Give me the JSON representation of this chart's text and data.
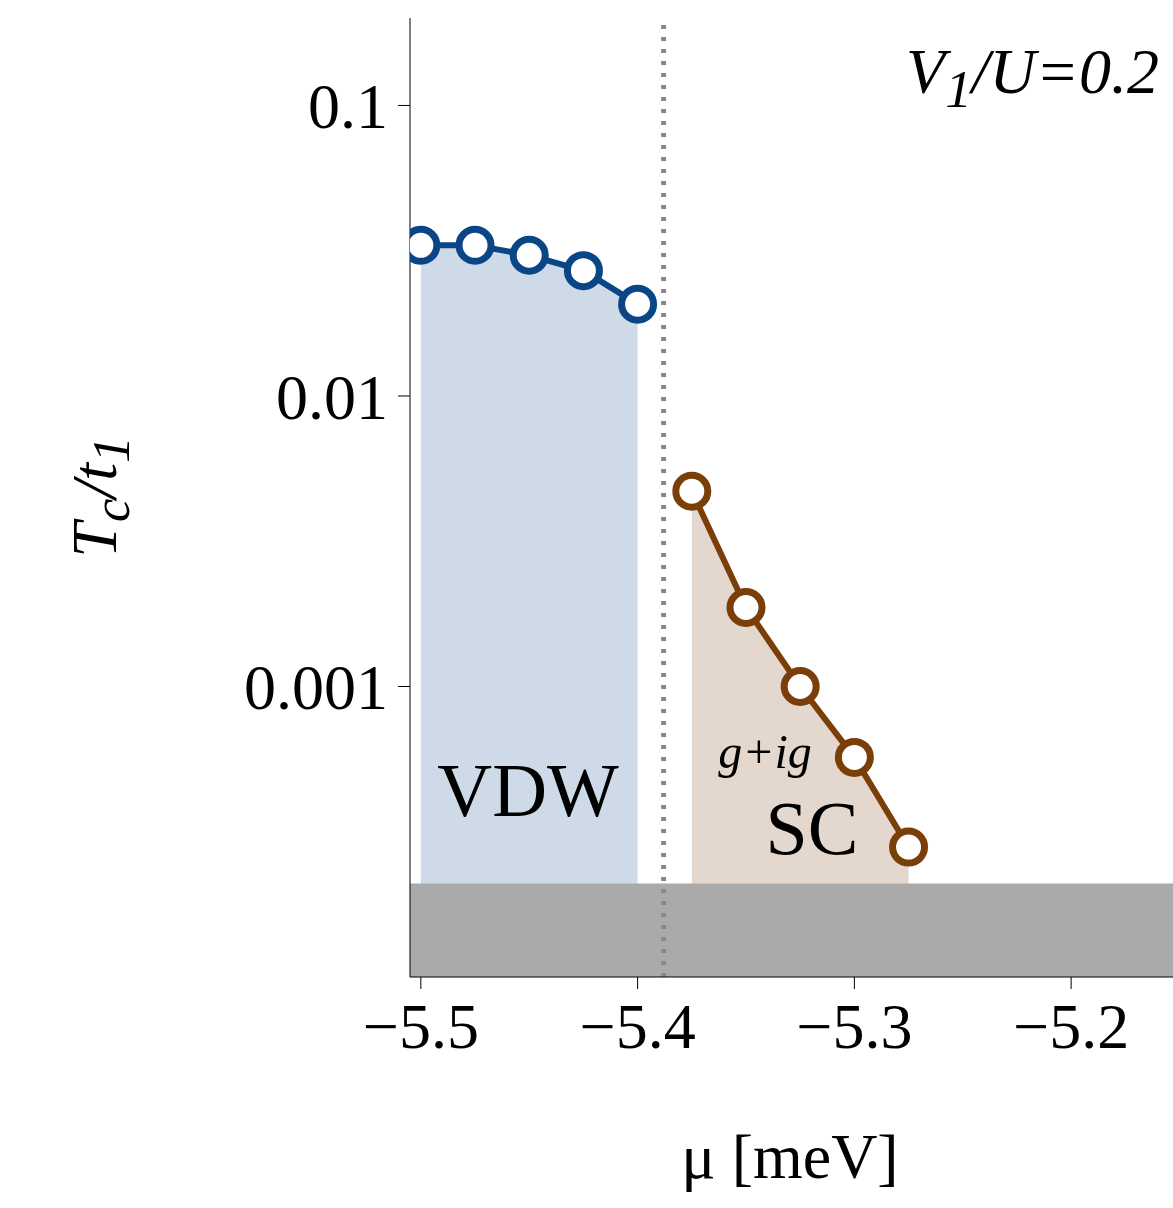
{
  "chart_data": {
    "type": "area",
    "xlabel": "μ [meV]",
    "ylabel": "T$_{c}$/t$_{1}$",
    "log": "y",
    "marker": "circle",
    "xlim": [
      -5.505,
      -5.153
    ],
    "xticks": [
      {
        "value": -5.5,
        "label": "−5.5"
      },
      {
        "value": -5.4,
        "label": "−5.4"
      },
      {
        "value": -5.3,
        "label": "−5.3"
      },
      {
        "value": -5.2,
        "label": "−5.2"
      }
    ],
    "ylim": [
      0.0001,
      0.2
    ],
    "yticks": [
      0.1,
      0.01,
      0.001
    ],
    "series": [
      {
        "color": "#0a4585",
        "x": [
          -5.5,
          -5.475,
          -5.45,
          -5.425,
          -5.4
        ],
        "values": [
          0.033,
          0.033,
          0.0305,
          0.027,
          0.0207
        ]
      },
      {
        "color": "#7a3e08",
        "x": [
          -5.375,
          -5.35,
          -5.325,
          -5.3,
          -5.275
        ],
        "values": [
          0.0047,
          0.00187,
          0.001,
          0.00057,
          0.00028
        ]
      }
    ],
    "ref_lines": [
      {
        "axis": "x",
        "value": -5.388,
        "color": "#888888",
        "line_style": "dotted"
      }
    ],
    "bands": [
      {
        "axis": "y",
        "from": 0.0001,
        "to": 0.00021,
        "color": "#aaaaaa"
      }
    ],
    "annotations": [
      "V$_{1}$/U=0.2",
      "VDW",
      "g+ig",
      "SC"
    ]
  }
}
